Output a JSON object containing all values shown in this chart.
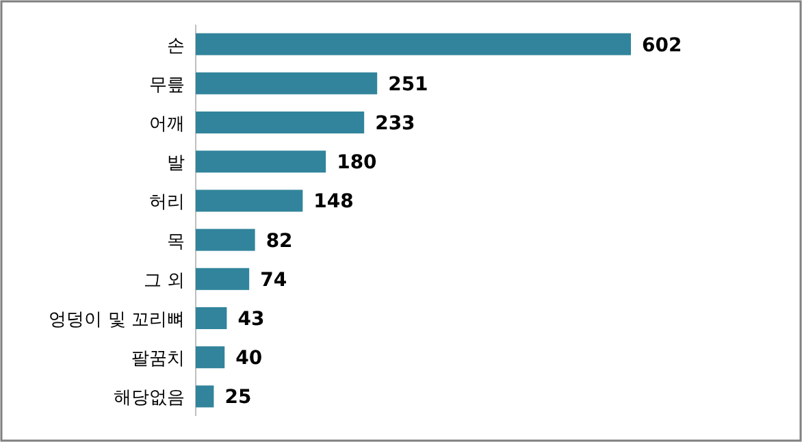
{
  "chart_data": {
    "type": "bar",
    "orientation": "horizontal",
    "categories": [
      "손",
      "무릎",
      "어깨",
      "발",
      "허리",
      "목",
      "그 외",
      "엉덩이 및 꼬리뼈",
      "팔꿈치",
      "해당없음"
    ],
    "values": [
      602,
      251,
      233,
      180,
      148,
      82,
      74,
      43,
      40,
      25
    ],
    "color": "#31849b",
    "data_labels": true
  }
}
